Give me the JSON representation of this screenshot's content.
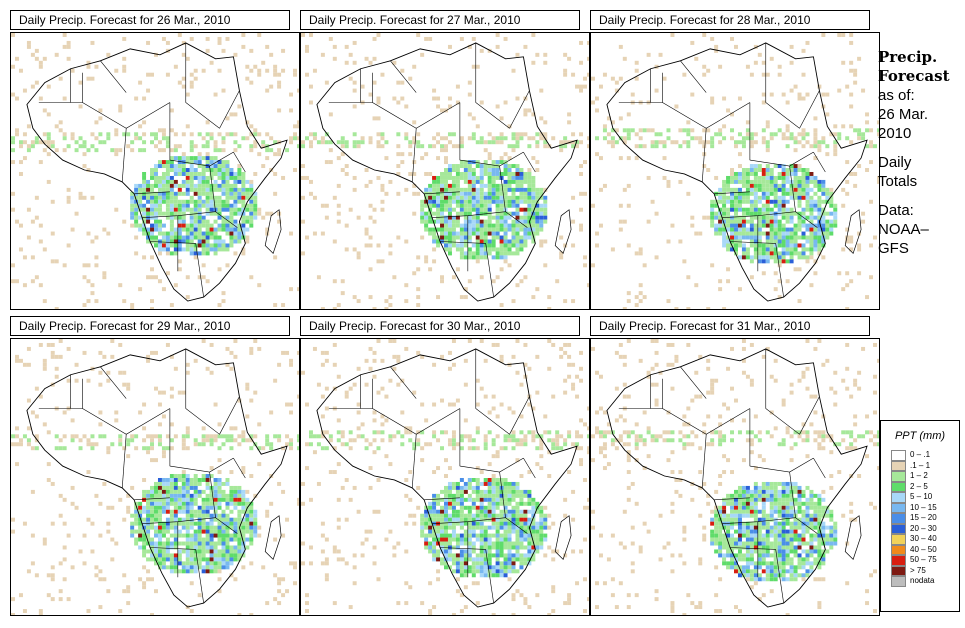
{
  "panels": [
    {
      "title": "Daily Precip. Forecast for  26 Mar., 2010",
      "day": 0
    },
    {
      "title": "Daily Precip. Forecast for  27 Mar., 2010",
      "day": 1
    },
    {
      "title": "Daily Precip. Forecast for  28 Mar., 2010",
      "day": 2
    },
    {
      "title": "Daily Precip. Forecast for  29 Mar., 2010",
      "day": 3
    },
    {
      "title": "Daily Precip. Forecast for  30 Mar., 2010",
      "day": 4
    },
    {
      "title": "Daily Precip. Forecast for  31 Mar., 2010",
      "day": 5
    }
  ],
  "side": {
    "heading1": "Precip.",
    "heading2": "Forecast",
    "asof": "as of:",
    "date1": "26 Mar.",
    "date2": "2010",
    "daily1": "Daily",
    "daily2": "Totals",
    "data_label": "Data:",
    "source1": "NOAA–",
    "source2": "GFS"
  },
  "legend": {
    "title": "PPT (mm)",
    "items": [
      {
        "label": "0 – .1",
        "color": "#ffffff"
      },
      {
        "label": ".1 – 1",
        "color": "#e6d3b5"
      },
      {
        "label": "1 – 2",
        "color": "#a6e89a"
      },
      {
        "label": "2 – 5",
        "color": "#5fdc6a"
      },
      {
        "label": "5 – 10",
        "color": "#a8d8f8"
      },
      {
        "label": "10 – 15",
        "color": "#78b8f0"
      },
      {
        "label": "15 – 20",
        "color": "#4a8ee8"
      },
      {
        "label": "20 – 30",
        "color": "#2a5fd8"
      },
      {
        "label": "30 – 40",
        "color": "#f2d25a"
      },
      {
        "label": "40 – 50",
        "color": "#f08a1c"
      },
      {
        "label": "50 – 75",
        "color": "#d81e10"
      },
      {
        "label": "> 75",
        "color": "#7e1a12"
      },
      {
        "label": "nodata",
        "color": "#bdbdbd"
      }
    ]
  }
}
